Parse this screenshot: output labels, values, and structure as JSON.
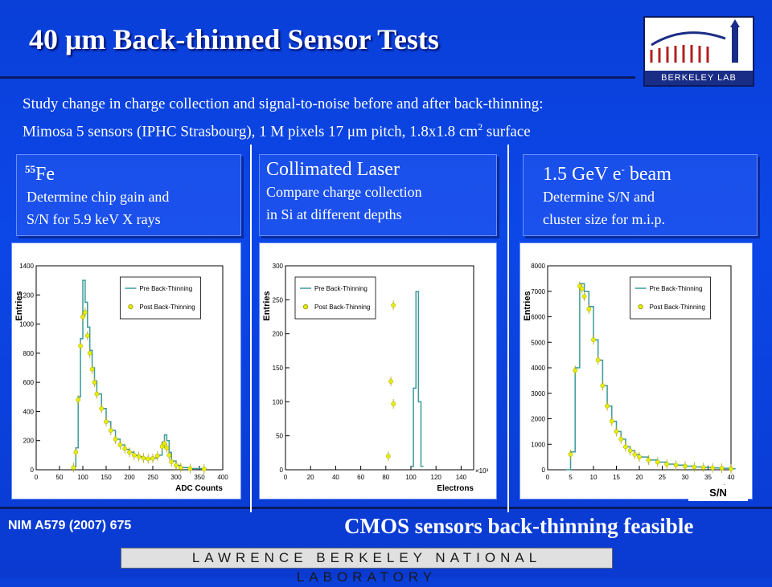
{
  "slide": {
    "title": "40 μm Back-thinned Sensor Tests",
    "intro_line1": "Study change in charge collection and signal-to-noise before and after back-thinning:",
    "intro_line2_a": "Mimosa 5 sensors (IPHC Strasbourg), 1 M pixels 17 μm pitch, 1.8x1.8 cm",
    "intro_line2_sup": "2",
    "intro_line2_b": " surface",
    "logo_text": "BERKELEY LAB",
    "footer_ref": "NIM A579 (2007) 675",
    "footer_conclusion": "CMOS sensors back-thinning feasible",
    "lab_bar": "LAWRENCE BERKELEY NATIONAL LABORATORY",
    "sn_label": "S/N"
  },
  "panels": [
    {
      "head_sup": "55",
      "head": "Fe",
      "desc1": "Determine chip gain and",
      "desc2": "S/N for 5.9 keV X rays"
    },
    {
      "head_sup": "",
      "head": "Collimated Laser",
      "desc1": "Compare charge collection",
      "desc2": "in Si at different depths"
    },
    {
      "head_sup": "",
      "head": "1.5 GeV e",
      "head_sup_after": "-",
      "head_tail": " beam",
      "desc1": "Determine S/N and",
      "desc2": "cluster size for m.i.p."
    }
  ],
  "colors": {
    "pre_line": "#3a9a9a",
    "post_marker": "#e8ee00",
    "plot_bg": "#ffffff",
    "grid": "#d0d0d0"
  },
  "chart_data": [
    {
      "type": "line",
      "xlabel": "ADC Counts",
      "ylabel": "Entries",
      "xlim": [
        0,
        400
      ],
      "ylim": [
        0,
        1400
      ],
      "xticks": [
        0,
        50,
        100,
        150,
        200,
        250,
        300,
        350,
        400
      ],
      "yticks": [
        0,
        200,
        400,
        600,
        800,
        1000,
        1200,
        1400
      ],
      "legend_position": "top-right",
      "series": [
        {
          "name": "Pre Back-Thinning",
          "style": "step",
          "x": [
            80,
            85,
            90,
            95,
            100,
            105,
            110,
            115,
            120,
            125,
            130,
            140,
            150,
            160,
            170,
            180,
            190,
            200,
            210,
            220,
            230,
            240,
            250,
            260,
            270,
            275,
            280,
            285,
            290,
            300,
            310,
            330,
            360
          ],
          "y": [
            20,
            150,
            500,
            900,
            1300,
            1150,
            980,
            820,
            700,
            610,
            520,
            420,
            330,
            270,
            210,
            170,
            140,
            120,
            100,
            90,
            80,
            75,
            80,
            100,
            190,
            240,
            200,
            120,
            60,
            30,
            15,
            8,
            5
          ]
        },
        {
          "name": "Post Back-Thinning",
          "style": "markers",
          "x": [
            80,
            85,
            90,
            95,
            100,
            105,
            110,
            115,
            120,
            125,
            130,
            140,
            150,
            160,
            170,
            180,
            190,
            200,
            210,
            220,
            230,
            240,
            250,
            260,
            270,
            275,
            280,
            285,
            290,
            300,
            310,
            330,
            360
          ],
          "y": [
            15,
            120,
            480,
            850,
            1050,
            1080,
            920,
            800,
            690,
            600,
            520,
            420,
            330,
            270,
            210,
            170,
            145,
            120,
            100,
            90,
            80,
            75,
            78,
            95,
            160,
            180,
            150,
            100,
            55,
            30,
            15,
            8,
            5
          ]
        }
      ]
    },
    {
      "type": "line",
      "xlabel": "Electrons",
      "ylabel": "Entries",
      "x_multiplier": "×10³",
      "xlim": [
        0,
        150
      ],
      "ylim": [
        0,
        300
      ],
      "xticks": [
        0,
        20,
        40,
        60,
        80,
        100,
        120,
        140
      ],
      "yticks": [
        0,
        50,
        100,
        150,
        200,
        250,
        300
      ],
      "legend_position": "top-left",
      "series": [
        {
          "name": "Pre Back-Thinning",
          "style": "step",
          "x": [
            100,
            102,
            104,
            106,
            108
          ],
          "y": [
            5,
            120,
            262,
            100,
            5
          ]
        },
        {
          "name": "Post Back-Thinning",
          "style": "markers",
          "x": [
            82,
            84,
            86,
            86
          ],
          "y": [
            20,
            130,
            97,
            242
          ]
        }
      ]
    },
    {
      "type": "line",
      "xlabel": "S/N",
      "ylabel": "Entries",
      "xlim": [
        0,
        40
      ],
      "ylim": [
        0,
        8000
      ],
      "xticks": [
        0,
        5,
        10,
        15,
        20,
        25,
        30,
        35,
        40
      ],
      "yticks": [
        0,
        1000,
        2000,
        3000,
        4000,
        5000,
        6000,
        7000,
        8000
      ],
      "legend_position": "top-right",
      "series": [
        {
          "name": "Pre Back-Thinning",
          "style": "step",
          "x": [
            4,
            5,
            6,
            7,
            8,
            9,
            10,
            11,
            12,
            13,
            14,
            15,
            16,
            17,
            18,
            19,
            20,
            22,
            24,
            26,
            28,
            30,
            32,
            34,
            36,
            38,
            40
          ],
          "y": [
            0,
            700,
            4000,
            7300,
            7000,
            6400,
            5100,
            4300,
            3300,
            2500,
            1900,
            1500,
            1200,
            900,
            750,
            600,
            500,
            380,
            300,
            220,
            180,
            140,
            110,
            90,
            70,
            60,
            40
          ]
        },
        {
          "name": "Post Back-Thinning",
          "style": "markers",
          "x": [
            5,
            6,
            7,
            7.5,
            8,
            9,
            10,
            11,
            12,
            13,
            14,
            15,
            16,
            17,
            18,
            19,
            20,
            22,
            24,
            26,
            28,
            30,
            32,
            34,
            36,
            38,
            40
          ],
          "y": [
            600,
            3900,
            7200,
            7100,
            6800,
            6300,
            5100,
            4300,
            3300,
            2500,
            1900,
            1500,
            1200,
            900,
            750,
            600,
            500,
            380,
            300,
            220,
            180,
            140,
            110,
            90,
            70,
            60,
            40
          ]
        }
      ]
    }
  ]
}
